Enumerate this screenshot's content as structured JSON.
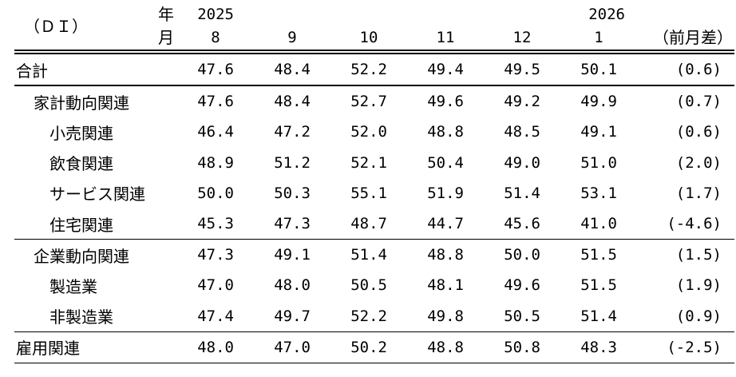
{
  "page": {
    "background_color": "#ffffff",
    "text_color": "#000000"
  },
  "table": {
    "corner_label": "（ＤＩ）",
    "year_axis_label": "年",
    "month_axis_label": "月",
    "year_left": "2025",
    "year_right": "2026",
    "months": [
      "8",
      "9",
      "10",
      "11",
      "12",
      "1"
    ],
    "diff_header": "（前月差）",
    "sections": [
      {
        "rows": [
          {
            "label": "合計",
            "indent": 0,
            "values": [
              "47.6",
              "48.4",
              "52.2",
              "49.4",
              "49.5",
              "50.1"
            ],
            "diff": "(0.6)"
          }
        ]
      },
      {
        "rows": [
          {
            "label": "家計動向関連",
            "indent": 1,
            "values": [
              "47.6",
              "48.4",
              "52.7",
              "49.6",
              "49.2",
              "49.9"
            ],
            "diff": "(0.7)"
          },
          {
            "label": "小売関連",
            "indent": 2,
            "values": [
              "46.4",
              "47.2",
              "52.0",
              "48.8",
              "48.5",
              "49.1"
            ],
            "diff": "(0.6)"
          },
          {
            "label": "飲食関連",
            "indent": 2,
            "values": [
              "48.9",
              "51.2",
              "52.1",
              "50.4",
              "49.0",
              "51.0"
            ],
            "diff": "(2.0)"
          },
          {
            "label": "サービス関連",
            "indent": 2,
            "values": [
              "50.0",
              "50.3",
              "55.1",
              "51.9",
              "51.4",
              "53.1"
            ],
            "diff": "(1.7)"
          },
          {
            "label": "住宅関連",
            "indent": 2,
            "values": [
              "45.3",
              "47.3",
              "48.7",
              "44.7",
              "45.6",
              "41.0"
            ],
            "diff": "(-4.6)"
          }
        ]
      },
      {
        "rows": [
          {
            "label": "企業動向関連",
            "indent": 1,
            "values": [
              "47.3",
              "49.1",
              "51.4",
              "48.8",
              "50.0",
              "51.5"
            ],
            "diff": "(1.5)"
          },
          {
            "label": "製造業",
            "indent": 2,
            "values": [
              "47.0",
              "48.0",
              "50.5",
              "48.1",
              "49.6",
              "51.5"
            ],
            "diff": "(1.9)"
          },
          {
            "label": "非製造業",
            "indent": 2,
            "values": [
              "47.4",
              "49.7",
              "52.2",
              "49.8",
              "50.5",
              "51.4"
            ],
            "diff": "(0.9)"
          }
        ]
      },
      {
        "rows": [
          {
            "label": "雇用関連",
            "indent": 0,
            "values": [
              "48.0",
              "47.0",
              "50.2",
              "48.8",
              "50.8",
              "48.3"
            ],
            "diff": "(-2.5)"
          }
        ]
      }
    ]
  },
  "chart_data": {
    "type": "table",
    "title": "（ＤＩ）",
    "columns": [
      "2025年8月",
      "2025年9月",
      "2025年10月",
      "2025年11月",
      "2025年12月",
      "2026年1月",
      "前月差"
    ],
    "rows": [
      {
        "label": "合計",
        "values": [
          47.6,
          48.4,
          52.2,
          49.4,
          49.5,
          50.1
        ],
        "mom_diff": 0.6
      },
      {
        "label": "家計動向関連",
        "values": [
          47.6,
          48.4,
          52.7,
          49.6,
          49.2,
          49.9
        ],
        "mom_diff": 0.7
      },
      {
        "label": "小売関連",
        "values": [
          46.4,
          47.2,
          52.0,
          48.8,
          48.5,
          49.1
        ],
        "mom_diff": 0.6
      },
      {
        "label": "飲食関連",
        "values": [
          48.9,
          51.2,
          52.1,
          50.4,
          49.0,
          51.0
        ],
        "mom_diff": 2.0
      },
      {
        "label": "サービス関連",
        "values": [
          50.0,
          50.3,
          55.1,
          51.9,
          51.4,
          53.1
        ],
        "mom_diff": 1.7
      },
      {
        "label": "住宅関連",
        "values": [
          45.3,
          47.3,
          48.7,
          44.7,
          45.6,
          41.0
        ],
        "mom_diff": -4.6
      },
      {
        "label": "企業動向関連",
        "values": [
          47.3,
          49.1,
          51.4,
          48.8,
          50.0,
          51.5
        ],
        "mom_diff": 1.5
      },
      {
        "label": "製造業",
        "values": [
          47.0,
          48.0,
          50.5,
          48.1,
          49.6,
          51.5
        ],
        "mom_diff": 1.9
      },
      {
        "label": "非製造業",
        "values": [
          47.4,
          49.7,
          52.2,
          49.8,
          50.5,
          51.4
        ],
        "mom_diff": 0.9
      },
      {
        "label": "雇用関連",
        "values": [
          48.0,
          47.0,
          50.2,
          48.8,
          50.8,
          48.3
        ],
        "mom_diff": -2.5
      }
    ]
  }
}
